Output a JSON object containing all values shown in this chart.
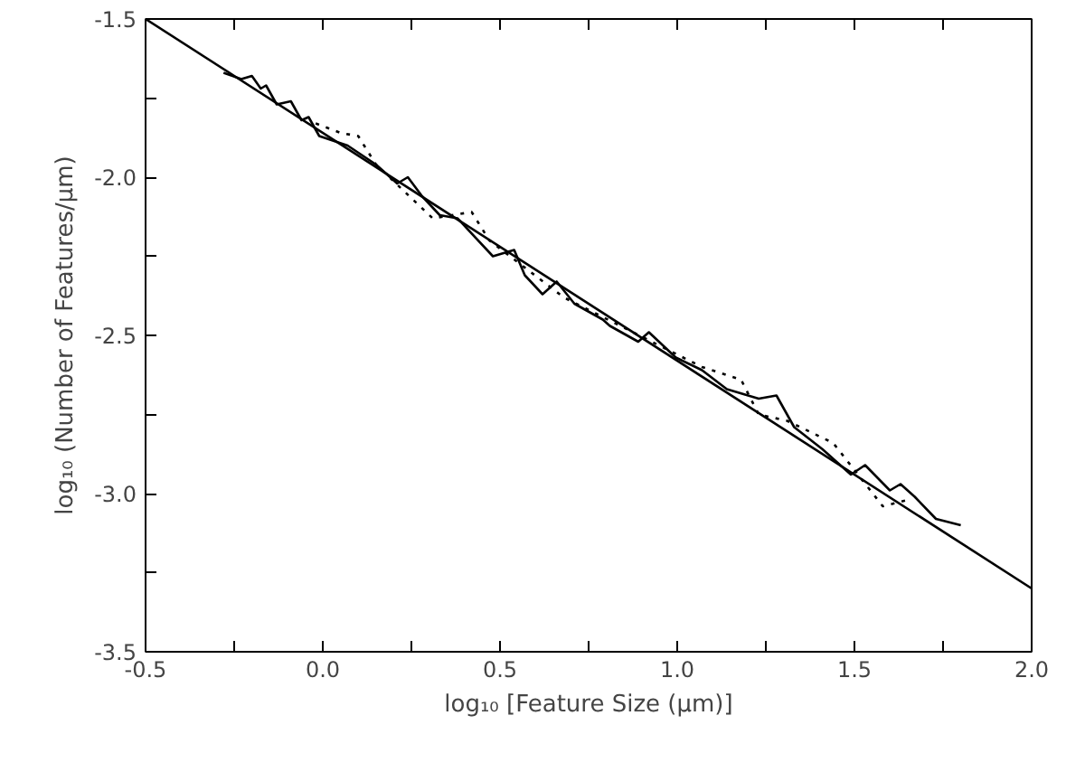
{
  "chart_data": {
    "type": "line",
    "xlabel": "log₁₀ [Feature Size (μm)]",
    "ylabel": "log₁₀ (Number of Features/μm)",
    "xlim": [
      -0.5,
      2.0
    ],
    "ylim": [
      -3.5,
      -1.5
    ],
    "xticks": [
      -0.5,
      {
        "value": -0.25,
        "label": null
      },
      "0.0",
      {
        "value": 0.25,
        "label": null
      },
      0.5,
      {
        "value": 0.75,
        "label": null
      },
      "1.0",
      {
        "value": 1.25,
        "label": null
      },
      1.5,
      {
        "value": 1.75,
        "label": null
      },
      "2.0"
    ],
    "yticks": [
      -3.5,
      {
        "value": -3.25,
        "label": null
      },
      "-3.0",
      {
        "value": -2.75,
        "label": null
      },
      -2.5,
      {
        "value": -2.25,
        "label": null
      },
      "-2.0",
      {
        "value": -1.75,
        "label": null
      },
      -1.5
    ],
    "grid": false,
    "series": [
      {
        "color": "#000000",
        "line_style": "solid",
        "x": [
          -0.5,
          2.0
        ],
        "values": [
          -1.5,
          -3.3
        ]
      },
      {
        "color": "#000000",
        "line_style": "solid",
        "x": [
          -0.28,
          -0.23,
          -0.2,
          -0.175,
          -0.16,
          -0.13,
          -0.09,
          -0.06,
          -0.04,
          -0.01,
          0.07,
          0.15,
          0.21,
          0.24,
          0.28,
          0.33,
          0.38,
          0.48,
          0.54,
          0.57,
          0.62,
          0.66,
          0.71,
          0.79,
          0.81,
          0.89,
          0.92,
          0.996,
          1.07,
          1.14,
          1.23,
          1.28,
          1.33,
          1.41,
          1.49,
          1.53,
          1.6,
          1.63,
          1.67,
          1.73,
          1.8
        ],
        "values": [
          -1.67,
          -1.69,
          -1.68,
          -1.72,
          -1.71,
          -1.77,
          -1.76,
          -1.82,
          -1.81,
          -1.87,
          -1.9,
          -1.96,
          -2.02,
          -2.0,
          -2.06,
          -2.12,
          -2.13,
          -2.25,
          -2.23,
          -2.31,
          -2.37,
          -2.33,
          -2.4,
          -2.45,
          -2.47,
          -2.52,
          -2.49,
          -2.57,
          -2.61,
          -2.67,
          -2.7,
          -2.69,
          -2.79,
          -2.86,
          -2.94,
          -2.91,
          -2.99,
          -2.97,
          -3.01,
          -3.08,
          -3.1
        ]
      },
      {
        "color": "#000000",
        "line_style": "dotted",
        "x": [
          -0.02,
          0.05,
          0.1,
          0.15,
          0.31,
          0.42,
          0.47,
          0.68,
          1.07,
          1.18,
          1.23,
          1.31,
          1.44,
          1.58,
          1.65
        ],
        "values": [
          -1.83,
          -1.86,
          -1.87,
          -1.96,
          -2.13,
          -2.11,
          -2.2,
          -2.38,
          -2.6,
          -2.64,
          -2.75,
          -2.77,
          -2.84,
          -3.04,
          -3.02
        ]
      }
    ]
  }
}
